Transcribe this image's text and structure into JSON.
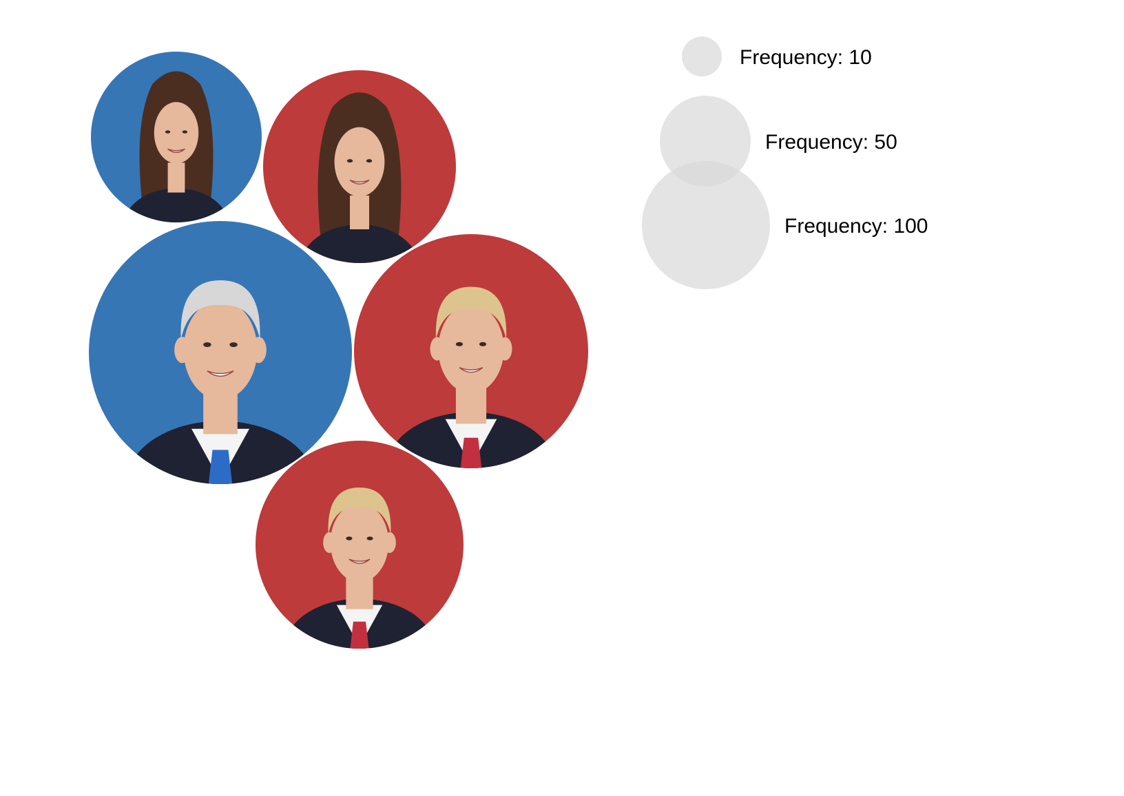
{
  "chart_data": {
    "type": "bubble",
    "colors": {
      "democratic": "#3676b5",
      "republican": "#bd3b3b",
      "legend_bubble": "#d9d9d9"
    },
    "bubbles": [
      {
        "party": "democratic",
        "icon": "woman-portrait-icon"
      },
      {
        "party": "republican",
        "icon": "woman-portrait-icon"
      },
      {
        "party": "democratic",
        "icon": "man-portrait-icon"
      },
      {
        "party": "republican",
        "icon": "man-portrait-icon"
      },
      {
        "party": "republican",
        "icon": "man-portrait-icon"
      }
    ],
    "legend": {
      "items": [
        {
          "label": "Frequency: 10",
          "value": 10
        },
        {
          "label": "Frequency: 50",
          "value": 50
        },
        {
          "label": "Frequency: 100",
          "value": 100
        }
      ]
    }
  }
}
